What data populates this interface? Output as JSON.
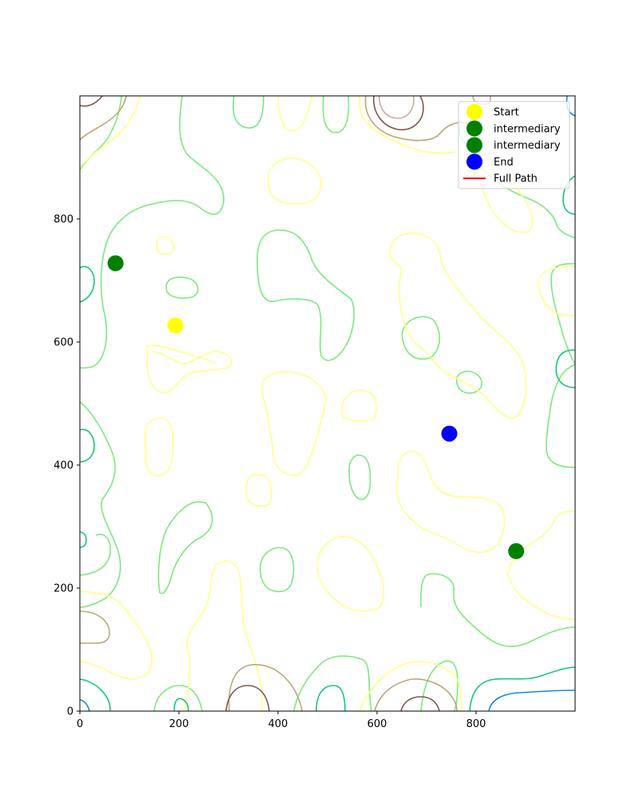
{
  "chart_data": {
    "type": "scatter",
    "title": "",
    "xlabel": "",
    "ylabel": "",
    "xlim": [
      0,
      1000
    ],
    "ylim": [
      0,
      1000
    ],
    "xticks": [
      "0",
      "200",
      "400",
      "600",
      "800"
    ],
    "yticks": [
      "0",
      "200",
      "400",
      "600",
      "800"
    ],
    "grid": false,
    "legend_placement": "top-right",
    "colors": {
      "start": "#ffff00",
      "intermediary": "#008000",
      "end": "#0000ff",
      "path": "#ff0000",
      "contour_levels": [
        "#1a88d8",
        "#14c878",
        "#7de87d",
        "#ffff88",
        "#baa878",
        "#7a5a50",
        "#c9aba5"
      ]
    },
    "points": [
      {
        "series": "Start",
        "x": 193,
        "y": 627
      },
      {
        "series": "intermediary",
        "x": 72,
        "y": 728
      },
      {
        "series": "intermediary",
        "x": 881,
        "y": 260
      },
      {
        "series": "End",
        "x": 746,
        "y": 451
      }
    ],
    "legend": [
      {
        "label": "Start",
        "marker": "circle",
        "color": "#ffff00"
      },
      {
        "label": "intermediary",
        "marker": "circle",
        "color": "#008000"
      },
      {
        "label": "intermediary",
        "marker": "circle",
        "color": "#008000"
      },
      {
        "label": "End",
        "marker": "circle",
        "color": "#0000ff"
      },
      {
        "label": "Full Path",
        "marker": "line",
        "color": "#ff0000"
      }
    ]
  }
}
